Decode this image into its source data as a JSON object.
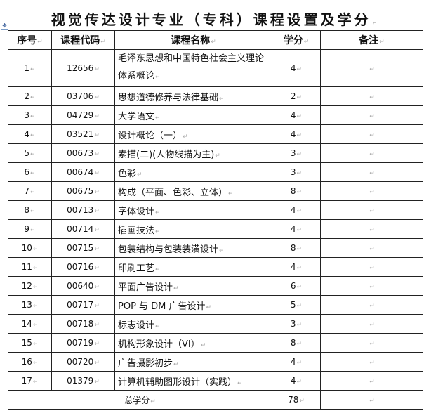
{
  "title": "视觉传达设计专业（专科）课程设置及学分",
  "headers": {
    "no": "序号",
    "code": "课程代码",
    "name": "课程名称",
    "credits": "学分",
    "note": "备注"
  },
  "rows": [
    {
      "no": "1",
      "code": "12656",
      "name": "毛泽东思想和中国特色社会主义理论体系概论",
      "credits": "4"
    },
    {
      "no": "2",
      "code": "03706",
      "name": "思想道德修养与法律基础",
      "credits": "2"
    },
    {
      "no": "3",
      "code": "04729",
      "name": "大学语文",
      "credits": "4"
    },
    {
      "no": "4",
      "code": "03521",
      "name": "设计概论（一）",
      "credits": "4"
    },
    {
      "no": "5",
      "code": "00673",
      "name": "素描(二)(人物线描为主)",
      "credits": "3"
    },
    {
      "no": "6",
      "code": "00674",
      "name": "色彩",
      "credits": "3"
    },
    {
      "no": "7",
      "code": "00675",
      "name": "构成（平面、色彩、立体）",
      "credits": "8"
    },
    {
      "no": "8",
      "code": "00713",
      "name": "字体设计",
      "credits": "4"
    },
    {
      "no": "9",
      "code": "00714",
      "name": "插画技法",
      "credits": "4"
    },
    {
      "no": "10",
      "code": "00715",
      "name": "包装结构与包装装潢设计",
      "credits": "8"
    },
    {
      "no": "11",
      "code": "00716",
      "name": "印刷工艺",
      "credits": "4"
    },
    {
      "no": "12",
      "code": "00640",
      "name": "平面广告设计",
      "credits": "6"
    },
    {
      "no": "13",
      "code": "00717",
      "name": "POP 与 DM 广告设计",
      "credits": "5"
    },
    {
      "no": "14",
      "code": "00718",
      "name": "标志设计",
      "credits": "3"
    },
    {
      "no": "15",
      "code": "00719",
      "name": "机构形象设计（VI）",
      "credits": "8"
    },
    {
      "no": "16",
      "code": "00720",
      "name": "广告摄影初步",
      "credits": "4"
    },
    {
      "no": "17",
      "code": "01379",
      "name": "计算机辅助图形设计（实践）",
      "credits": "4"
    }
  ],
  "total": {
    "label": "总学分",
    "credits": "78"
  }
}
